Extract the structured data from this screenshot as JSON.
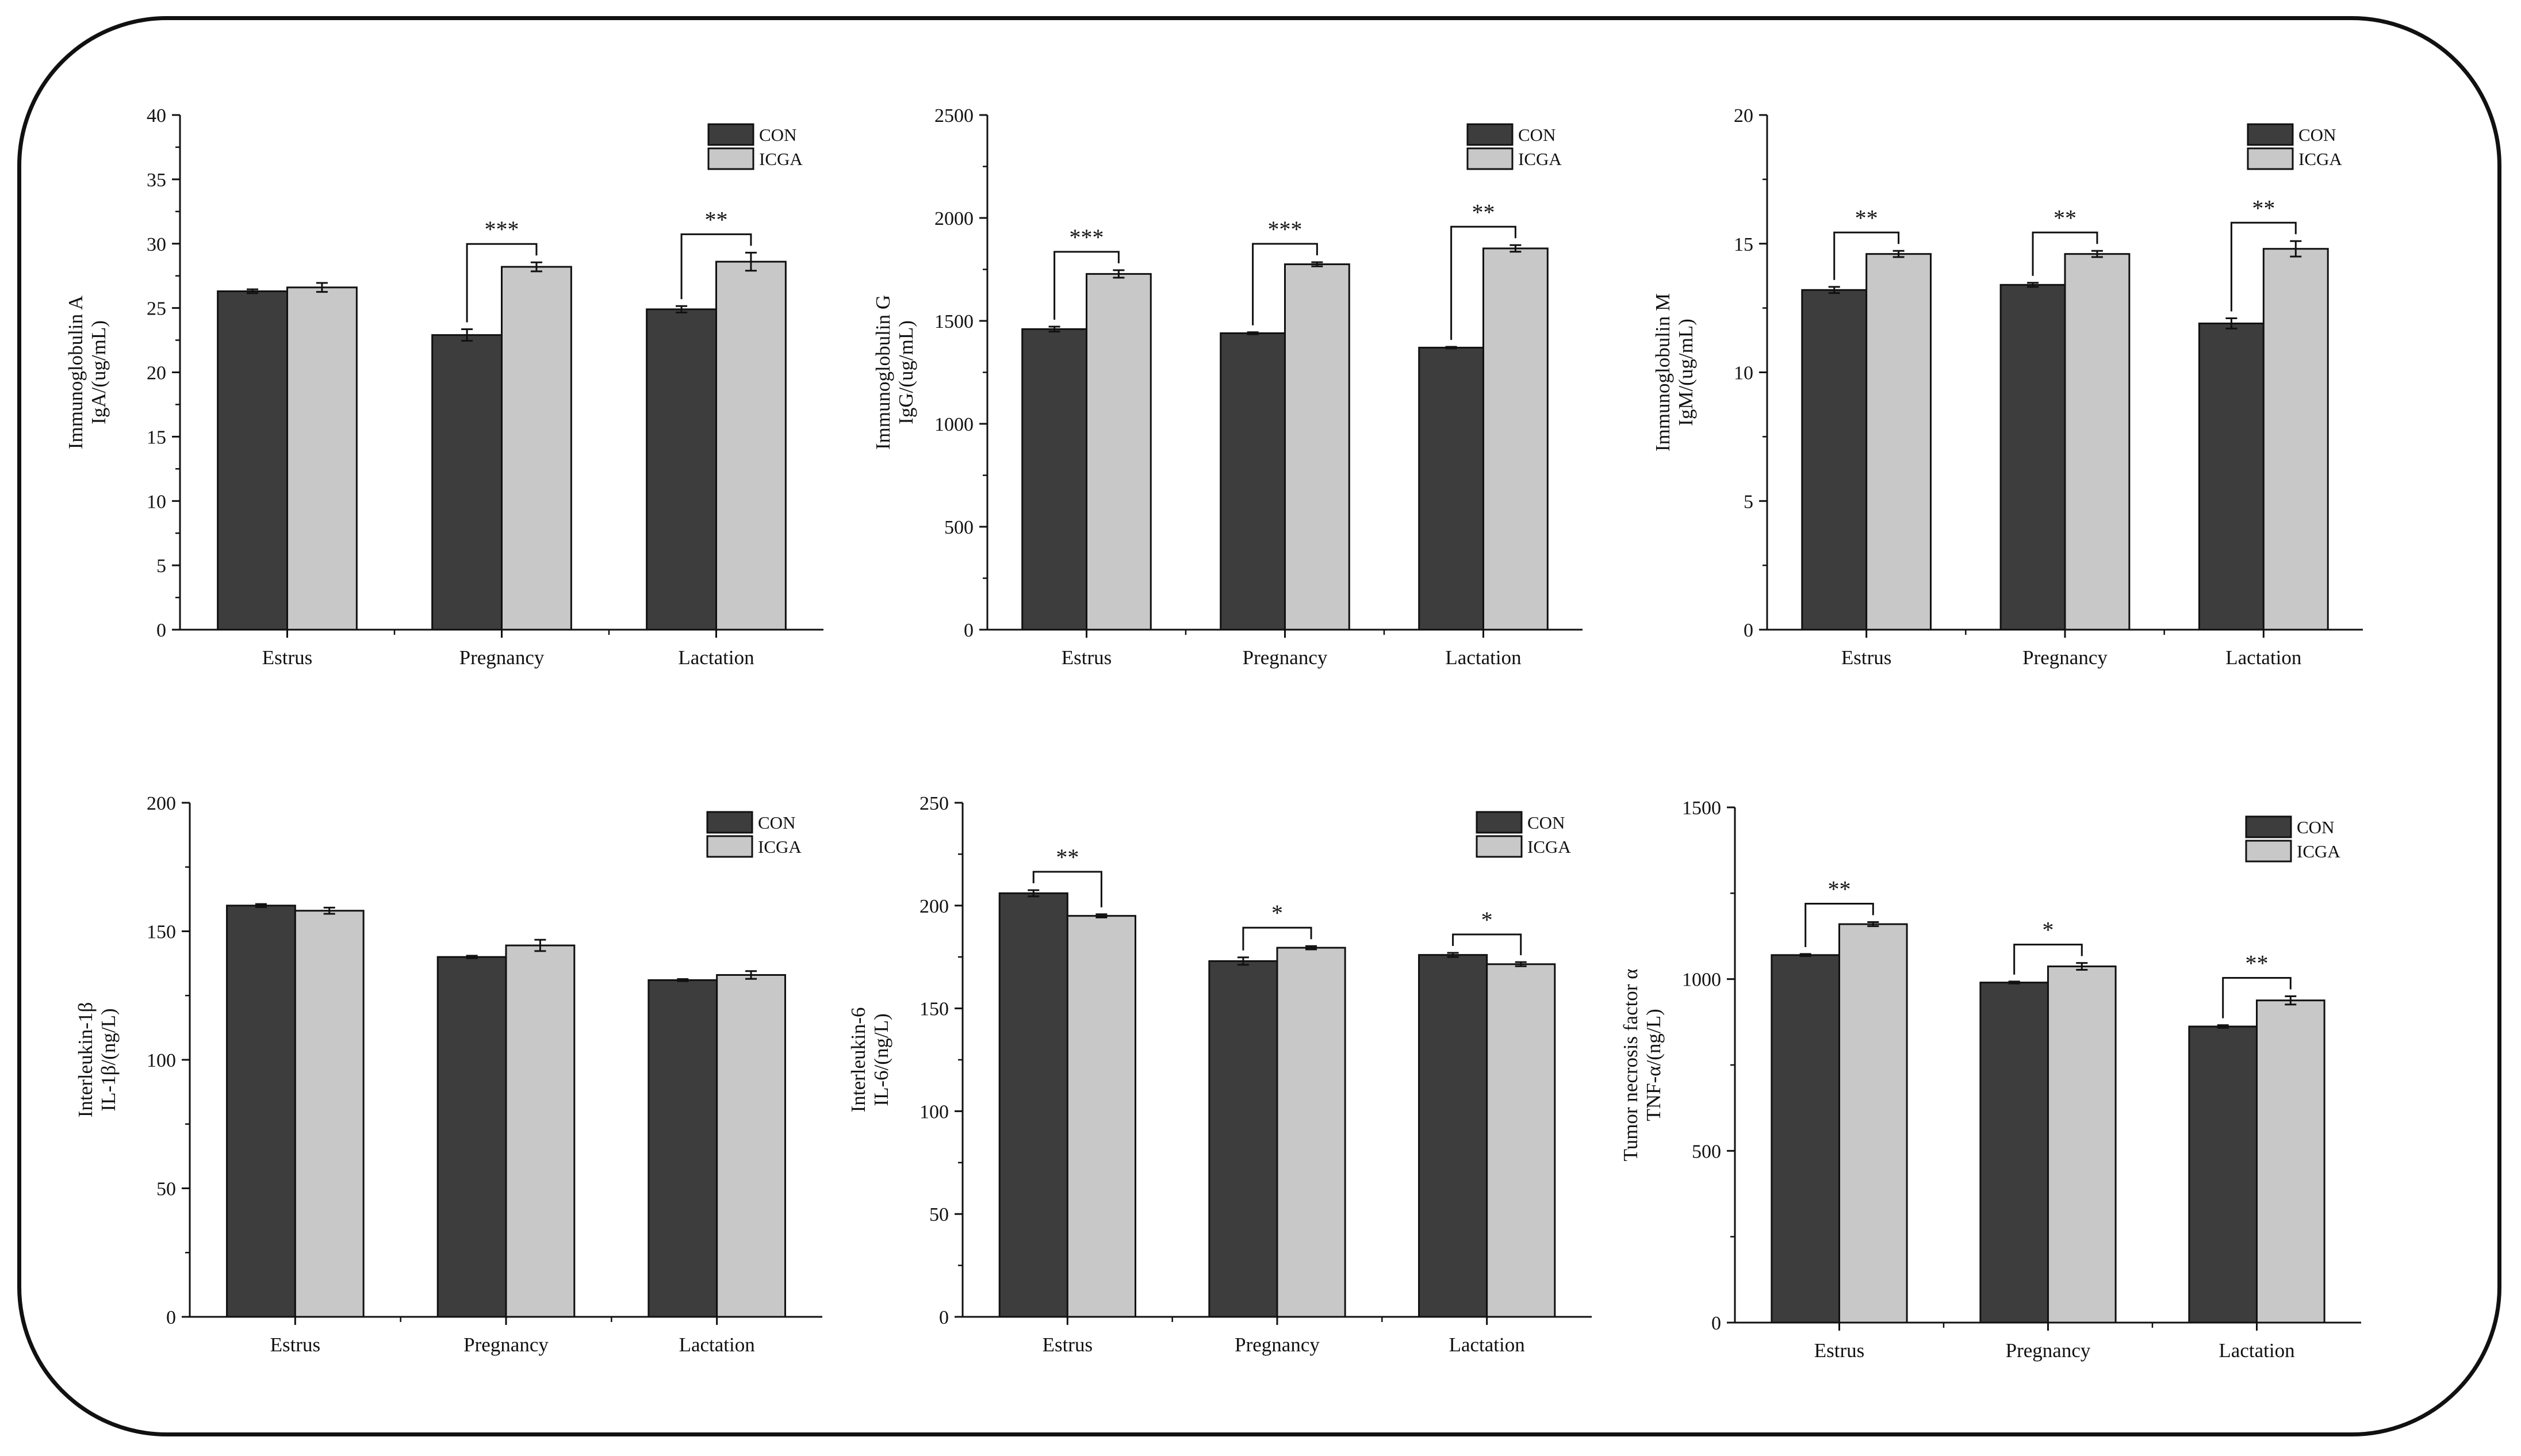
{
  "series_colors": {
    "CON": "#3d3d3d",
    "ICGA": "#c8c8c8"
  },
  "chart_data": [
    {
      "type": "bar",
      "ylabel": [
        "Immunoglobulin A",
        "IgA/(ug/mL)"
      ],
      "categories": [
        "Estrus",
        "Pregnancy",
        "Lactation"
      ],
      "ylim": [
        0,
        40
      ],
      "yticks": [
        0,
        5,
        10,
        15,
        20,
        25,
        30,
        35,
        40
      ],
      "legend": [
        "CON",
        "ICGA"
      ],
      "series": [
        {
          "name": "CON",
          "values": [
            26.3,
            22.9,
            24.9
          ],
          "errors": [
            0.15,
            0.45,
            0.25
          ]
        },
        {
          "name": "ICGA",
          "values": [
            26.6,
            28.2,
            28.6
          ],
          "errors": [
            0.35,
            0.35,
            0.7
          ]
        }
      ],
      "significance": [
        "",
        "***",
        "**"
      ]
    },
    {
      "type": "bar",
      "ylabel": [
        "Immunoglobulin G",
        "IgG/(ug/mL)"
      ],
      "categories": [
        "Estrus",
        "Pregnancy",
        "Lactation"
      ],
      "ylim": [
        0,
        2500
      ],
      "yticks": [
        0,
        500,
        1000,
        1500,
        2000,
        2500
      ],
      "legend": [
        "CON",
        "ICGA"
      ],
      "series": [
        {
          "name": "CON",
          "values": [
            1460,
            1440,
            1370
          ],
          "errors": [
            12,
            5,
            4
          ]
        },
        {
          "name": "ICGA",
          "values": [
            1728,
            1775,
            1852
          ],
          "errors": [
            18,
            10,
            16
          ]
        }
      ],
      "significance": [
        "***",
        "***",
        "**"
      ]
    },
    {
      "type": "bar",
      "ylabel": [
        "Immunoglobulin M",
        "IgM/(ug/mL)"
      ],
      "categories": [
        "Estrus",
        "Pregnancy",
        "Lactation"
      ],
      "ylim": [
        0,
        20
      ],
      "yticks": [
        0,
        5,
        10,
        15,
        20
      ],
      "legend": [
        "CON",
        "ICGA"
      ],
      "series": [
        {
          "name": "CON",
          "values": [
            13.2,
            13.4,
            11.9
          ],
          "errors": [
            0.12,
            0.08,
            0.2
          ]
        },
        {
          "name": "ICGA",
          "values": [
            14.6,
            14.6,
            14.8
          ],
          "errors": [
            0.12,
            0.12,
            0.3
          ]
        }
      ],
      "significance": [
        "**",
        "**",
        "**"
      ]
    },
    {
      "type": "bar",
      "ylabel": [
        "Interleukin-1β",
        "IL-1β/(ng/L)"
      ],
      "categories": [
        "Estrus",
        "Pregnancy",
        "Lactation"
      ],
      "ylim": [
        0,
        200
      ],
      "yticks": [
        0,
        50,
        100,
        150,
        200
      ],
      "legend": [
        "CON",
        "ICGA"
      ],
      "series": [
        {
          "name": "CON",
          "values": [
            160,
            140,
            131
          ],
          "errors": [
            0.6,
            0.5,
            0.4
          ]
        },
        {
          "name": "ICGA",
          "values": [
            158,
            144.5,
            133
          ],
          "errors": [
            1.2,
            2.2,
            1.5
          ]
        }
      ],
      "significance": [
        "",
        "",
        ""
      ]
    },
    {
      "type": "bar",
      "ylabel": [
        "Interleukin-6",
        "IL-6/(ng/L)"
      ],
      "categories": [
        "Estrus",
        "Pregnancy",
        "Lactation"
      ],
      "ylim": [
        0,
        250
      ],
      "yticks": [
        0,
        50,
        100,
        150,
        200,
        250
      ],
      "legend": [
        "CON",
        "ICGA"
      ],
      "series": [
        {
          "name": "CON",
          "values": [
            206,
            173,
            176
          ],
          "errors": [
            1.5,
            1.8,
            1.0
          ]
        },
        {
          "name": "ICGA",
          "values": [
            195,
            179.5,
            171.5
          ],
          "errors": [
            0.8,
            0.8,
            1.0
          ]
        }
      ],
      "significance": [
        "**",
        "*",
        "*"
      ]
    },
    {
      "type": "bar",
      "ylabel": [
        "Tumor necrosis factor α",
        "TNF-α/(ng/L)"
      ],
      "categories": [
        "Estrus",
        "Pregnancy",
        "Lactation"
      ],
      "ylim": [
        0,
        1500
      ],
      "yticks": [
        0,
        500,
        1000,
        1500
      ],
      "legend": [
        "CON",
        "ICGA"
      ],
      "series": [
        {
          "name": "CON",
          "values": [
            1070,
            990,
            862
          ],
          "errors": [
            3,
            3,
            4
          ]
        },
        {
          "name": "ICGA",
          "values": [
            1160,
            1037,
            938
          ],
          "errors": [
            6,
            10,
            12
          ]
        }
      ],
      "significance": [
        "**",
        "*",
        "**"
      ]
    }
  ]
}
